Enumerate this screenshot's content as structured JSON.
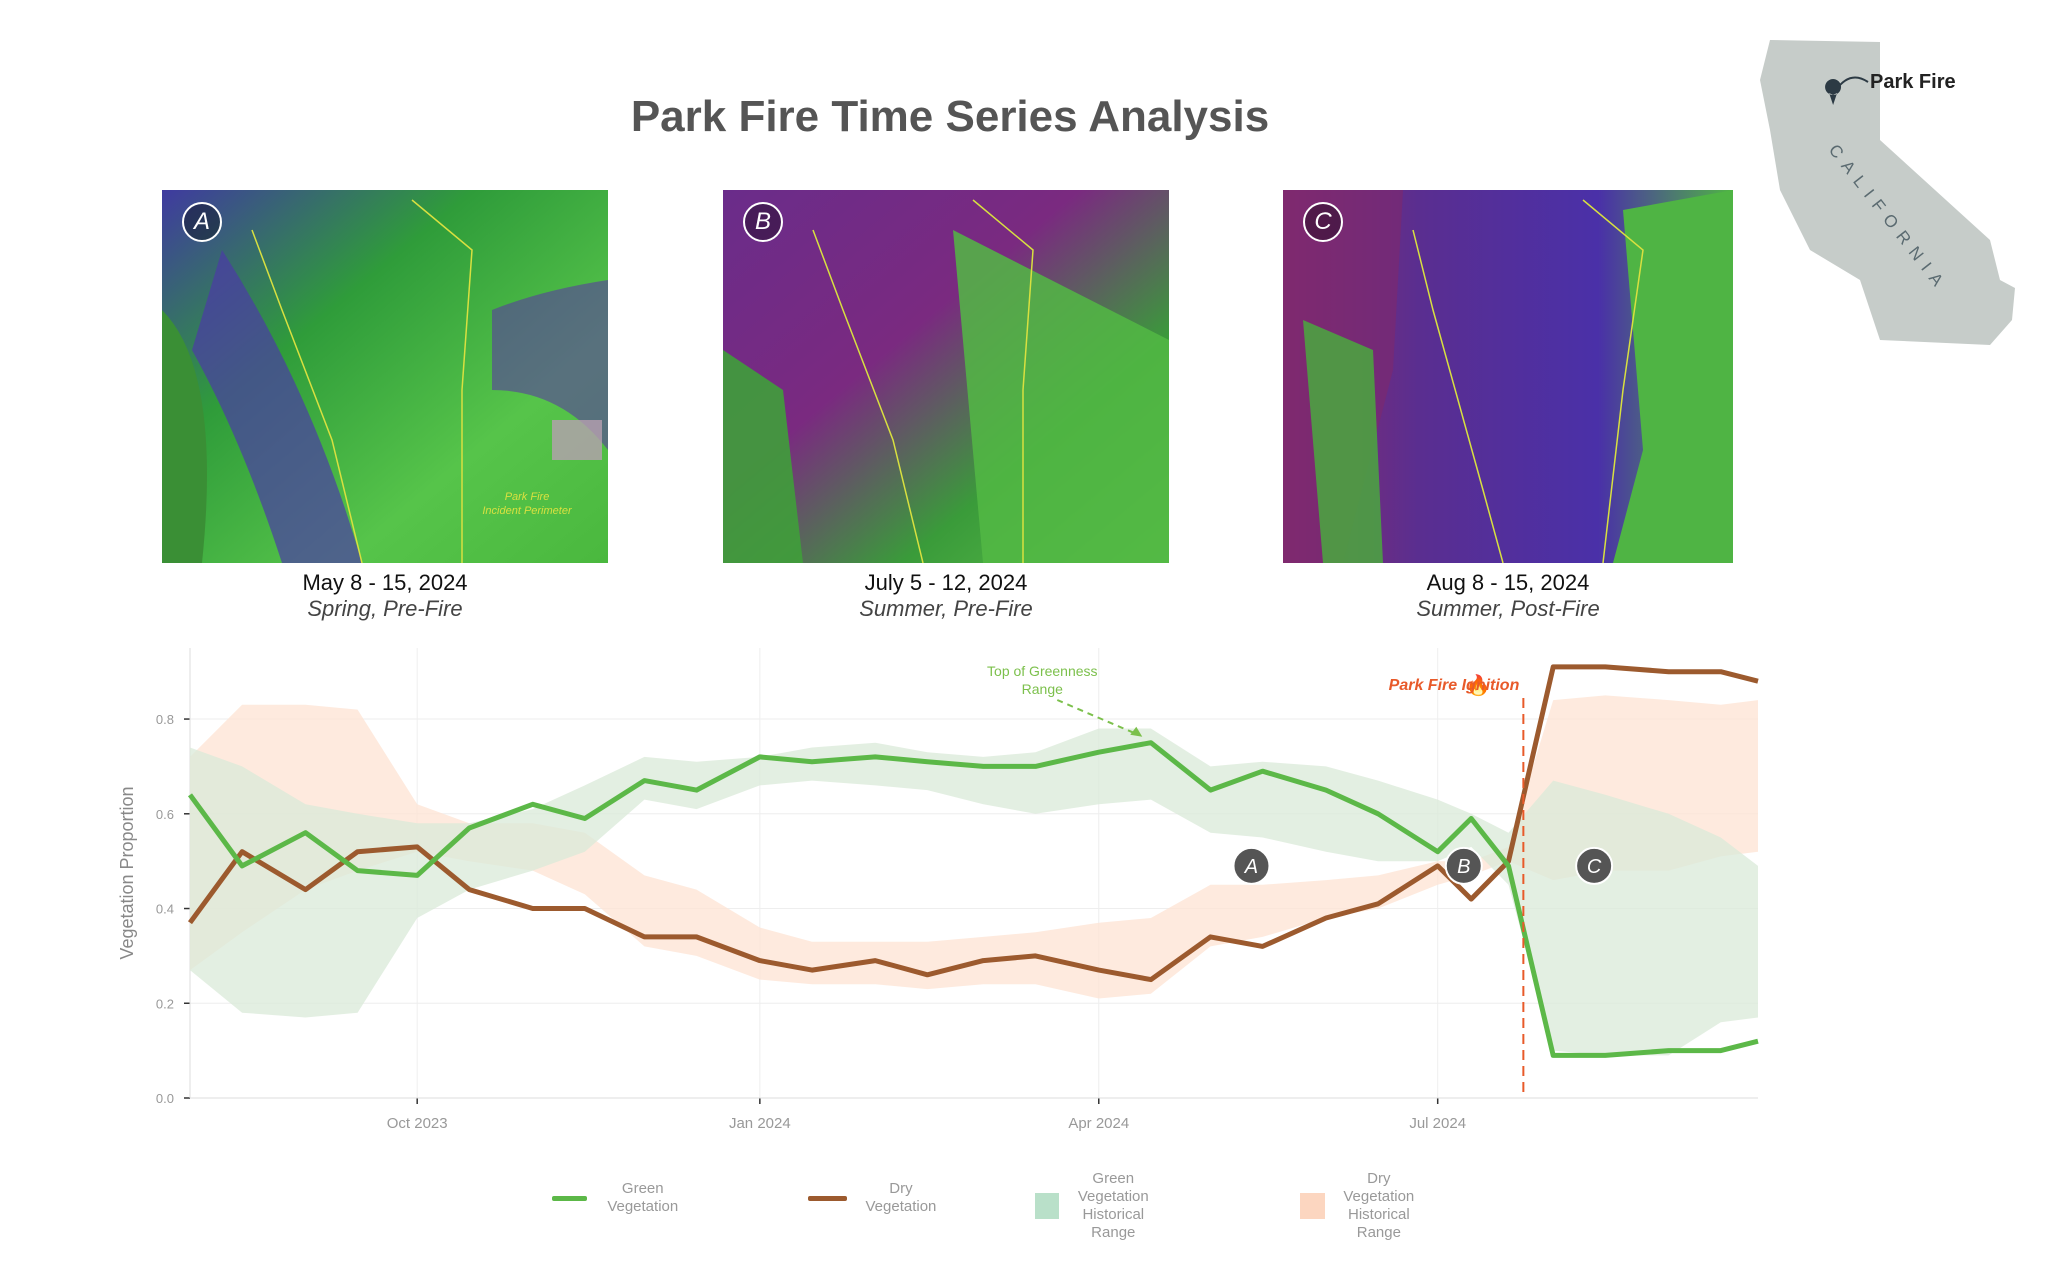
{
  "title": "Park Fire Time Series Analysis",
  "panels": [
    {
      "badge": "A",
      "date": "May 8 - 15, 2024",
      "season": "Spring, Pre-Fire",
      "note": "Park Fire\nIncident Perimeter"
    },
    {
      "badge": "B",
      "date": "July 5 - 12, 2024",
      "season": "Summer, Pre-Fire"
    },
    {
      "badge": "C",
      "date": "Aug 8 - 15, 2024",
      "season": "Summer, Post-Fire"
    }
  ],
  "map": {
    "label": "Park Fire",
    "state": "CALIFORNIA"
  },
  "colors": {
    "green": "#5cb848",
    "dry": "#9c5a2e",
    "green_band": "#d9ead8",
    "dry_band": "#fde3d3",
    "ignition": "#e85a2a",
    "annotation_green": "#7cc04c"
  },
  "chart_data": {
    "type": "line",
    "ylabel": "Vegetation Proportion",
    "xlabel": "",
    "ylim": [
      0,
      0.95
    ],
    "yticks": [
      "0.0",
      "0.2",
      "0.4",
      "0.6",
      "0.8"
    ],
    "xticks": [
      {
        "label": "Oct 2023",
        "date": "2023-10-01"
      },
      {
        "label": "Jan 2024",
        "date": "2024-01-01"
      },
      {
        "label": "Apr 2024",
        "date": "2024-04-01"
      },
      {
        "label": "Jul 2024",
        "date": "2024-07-01"
      }
    ],
    "xrange": [
      "2023-08-01",
      "2024-09-25"
    ],
    "x": [
      "2023-08-01",
      "2023-08-15",
      "2023-09-01",
      "2023-09-15",
      "2023-10-01",
      "2023-10-15",
      "2023-11-01",
      "2023-11-15",
      "2023-12-01",
      "2023-12-15",
      "2024-01-01",
      "2024-01-15",
      "2024-02-01",
      "2024-02-15",
      "2024-03-01",
      "2024-03-15",
      "2024-04-01",
      "2024-04-15",
      "2024-05-01",
      "2024-05-15",
      "2024-06-01",
      "2024-06-15",
      "2024-07-01",
      "2024-07-10",
      "2024-07-20",
      "2024-08-01",
      "2024-08-15",
      "2024-09-01",
      "2024-09-15",
      "2024-09-25"
    ],
    "series": [
      {
        "name": "Green Vegetation",
        "values": [
          0.64,
          0.49,
          0.56,
          0.48,
          0.47,
          0.57,
          0.62,
          0.59,
          0.67,
          0.65,
          0.72,
          0.71,
          0.72,
          0.71,
          0.7,
          0.7,
          0.73,
          0.75,
          0.65,
          0.69,
          0.65,
          0.6,
          0.52,
          0.59,
          0.49,
          0.09,
          0.09,
          0.1,
          0.1,
          0.12
        ]
      },
      {
        "name": "Dry Vegetation",
        "values": [
          0.37,
          0.52,
          0.44,
          0.52,
          0.53,
          0.44,
          0.4,
          0.4,
          0.34,
          0.34,
          0.29,
          0.27,
          0.29,
          0.26,
          0.29,
          0.3,
          0.27,
          0.25,
          0.34,
          0.32,
          0.38,
          0.41,
          0.49,
          0.42,
          0.5,
          0.91,
          0.91,
          0.9,
          0.9,
          0.88
        ]
      },
      {
        "name": "Green Vegetation Historical Range",
        "low": [
          0.27,
          0.18,
          0.17,
          0.18,
          0.38,
          0.44,
          0.48,
          0.52,
          0.63,
          0.61,
          0.66,
          0.67,
          0.66,
          0.65,
          0.62,
          0.6,
          0.62,
          0.63,
          0.56,
          0.55,
          0.52,
          0.5,
          0.5,
          0.53,
          0.45,
          0.1,
          0.09,
          0.09,
          0.16,
          0.17
        ],
        "high": [
          0.74,
          0.7,
          0.62,
          0.6,
          0.58,
          0.58,
          0.61,
          0.66,
          0.72,
          0.71,
          0.72,
          0.74,
          0.75,
          0.73,
          0.72,
          0.73,
          0.78,
          0.78,
          0.7,
          0.71,
          0.7,
          0.67,
          0.63,
          0.6,
          0.56,
          0.67,
          0.64,
          0.6,
          0.55,
          0.49
        ]
      },
      {
        "name": "Dry Vegetation Historical Range",
        "low": [
          0.27,
          0.35,
          0.44,
          0.48,
          0.52,
          0.5,
          0.48,
          0.43,
          0.32,
          0.3,
          0.25,
          0.24,
          0.24,
          0.23,
          0.24,
          0.24,
          0.21,
          0.22,
          0.32,
          0.34,
          0.38,
          0.4,
          0.45,
          0.47,
          0.5,
          0.46,
          0.48,
          0.48,
          0.51,
          0.52
        ],
        "high": [
          0.72,
          0.83,
          0.83,
          0.82,
          0.62,
          0.58,
          0.58,
          0.56,
          0.47,
          0.44,
          0.36,
          0.33,
          0.33,
          0.33,
          0.34,
          0.35,
          0.37,
          0.38,
          0.45,
          0.45,
          0.46,
          0.47,
          0.5,
          0.5,
          0.53,
          0.84,
          0.85,
          0.84,
          0.83,
          0.84
        ]
      }
    ],
    "annotations": [
      {
        "text": "Top of Greenness\nRange",
        "x": "2024-04-10",
        "y": 0.75
      },
      {
        "text": "Park Fire Ignition",
        "x": "2024-07-24"
      },
      {
        "label": "A",
        "x": "2024-05-12",
        "y": 0.49
      },
      {
        "label": "B",
        "x": "2024-07-08",
        "y": 0.49
      },
      {
        "label": "C",
        "x": "2024-08-12",
        "y": 0.49
      }
    ],
    "legend": [
      {
        "label": "Green Vegetation",
        "kind": "line",
        "color": "#5cb848"
      },
      {
        "label": "Dry Vegetation",
        "kind": "line",
        "color": "#9c5a2e"
      },
      {
        "label": "Green Vegetation\nHistorical Range",
        "kind": "band",
        "color": "#b9e0c9"
      },
      {
        "label": "Dry Vegetation\nHistorical Range",
        "kind": "band",
        "color": "#fcd6c0"
      }
    ]
  }
}
